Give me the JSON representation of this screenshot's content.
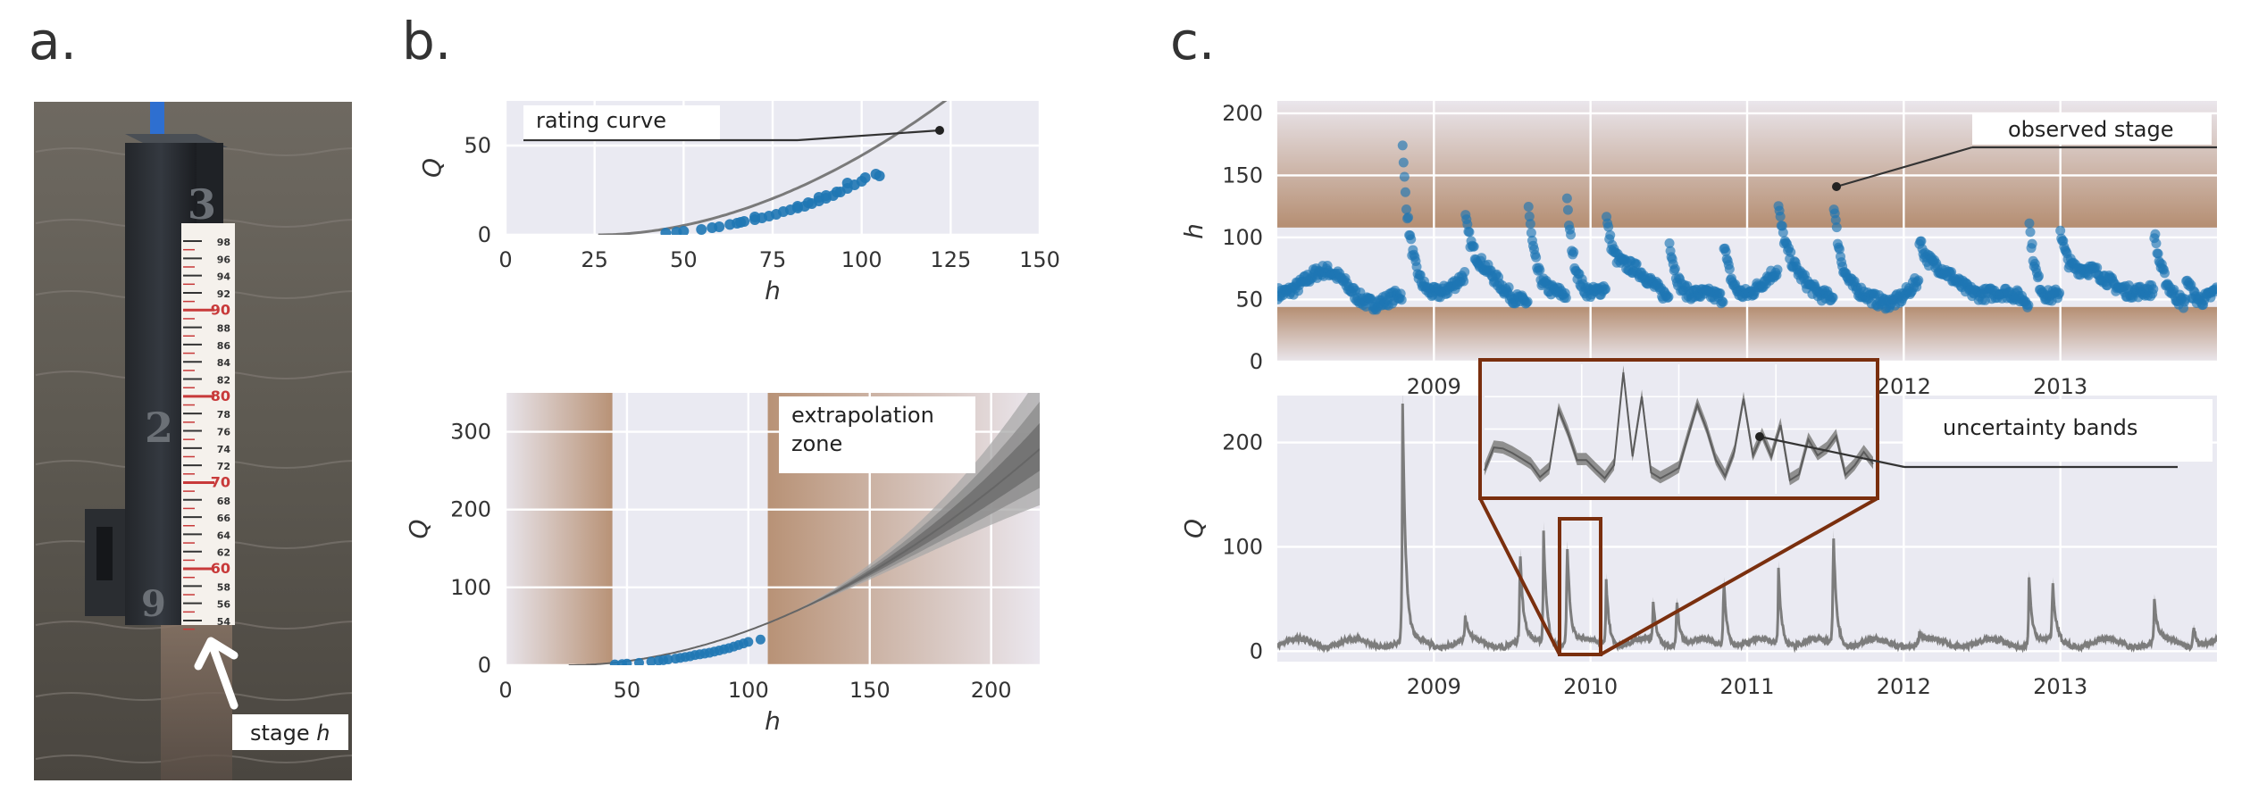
{
  "panels": {
    "a": {
      "letter": "a.",
      "label_prefix": "stage ",
      "label_var": "h",
      "gauge_marks": [
        "98",
        "96",
        "94",
        "92",
        "90",
        "88",
        "86",
        "84",
        "82",
        "80",
        "78",
        "76",
        "74",
        "72",
        "70",
        "68",
        "66",
        "64",
        "62",
        "60",
        "58",
        "56",
        "54"
      ],
      "post_numerals": [
        "3",
        "2",
        "9"
      ]
    },
    "b": {
      "letter": "b.",
      "callout_top": "rating curve",
      "callout_bottom_1": "extrapolation",
      "callout_bottom_2": "zone"
    },
    "c": {
      "letter": "c.",
      "callout_top": "observed stage",
      "callout_bottom": "uncertainty bands"
    }
  },
  "chart_data": [
    {
      "id": "b_top",
      "type": "scatter",
      "xlabel": "h",
      "ylabel": "Q",
      "xlim": [
        0,
        150
      ],
      "ylim": [
        0,
        75
      ],
      "xticks": [
        0,
        25,
        50,
        75,
        100,
        125,
        150
      ],
      "yticks": [
        0,
        50
      ],
      "curve": {
        "h0": 26,
        "a": 0.0125,
        "b": 1.9,
        "x_range": [
          26,
          135
        ]
      },
      "points": [
        [
          45,
          1
        ],
        [
          48,
          1.5
        ],
        [
          50,
          2
        ],
        [
          55,
          3
        ],
        [
          60,
          4.5
        ],
        [
          63,
          5.8
        ],
        [
          65,
          6.5
        ],
        [
          67,
          7.5
        ],
        [
          70,
          8.5
        ],
        [
          72,
          9.5
        ],
        [
          74,
          10.5
        ],
        [
          76,
          11.5
        ],
        [
          78,
          13
        ],
        [
          80,
          14
        ],
        [
          82,
          15
        ],
        [
          84,
          16
        ],
        [
          86,
          17.5
        ],
        [
          88,
          19
        ],
        [
          90,
          20.5
        ],
        [
          92,
          22
        ],
        [
          94,
          24
        ],
        [
          96,
          26
        ],
        [
          98,
          28
        ],
        [
          100,
          30
        ],
        [
          105,
          33
        ],
        [
          82,
          16
        ],
        [
          88,
          21
        ],
        [
          93,
          24
        ],
        [
          70,
          10
        ],
        [
          66,
          7
        ],
        [
          58,
          4
        ],
        [
          96,
          29
        ],
        [
          101,
          32
        ],
        [
          104,
          34
        ],
        [
          85,
          18
        ],
        [
          90,
          22
        ]
      ]
    },
    {
      "id": "b_bottom",
      "type": "line",
      "xlabel": "h",
      "ylabel": "Q",
      "xlim": [
        0,
        220
      ],
      "ylim": [
        0,
        350
      ],
      "xticks": [
        0,
        50,
        100,
        150,
        200
      ],
      "yticks": [
        0,
        100,
        200,
        300
      ],
      "shaded_regions": [
        [
          0,
          44
        ],
        [
          108,
          220
        ]
      ],
      "curve": {
        "h0": 26,
        "a": 0.0125,
        "b": 1.9,
        "x_range": [
          26,
          220
        ]
      },
      "points": [
        [
          45,
          1
        ],
        [
          48,
          1.5
        ],
        [
          50,
          2
        ],
        [
          55,
          3
        ],
        [
          60,
          4.5
        ],
        [
          63,
          5.8
        ],
        [
          65,
          6.5
        ],
        [
          67,
          7.5
        ],
        [
          70,
          8.5
        ],
        [
          72,
          9.5
        ],
        [
          74,
          10.5
        ],
        [
          76,
          11.5
        ],
        [
          78,
          13
        ],
        [
          80,
          14
        ],
        [
          82,
          15
        ],
        [
          84,
          16
        ],
        [
          86,
          17.5
        ],
        [
          88,
          19
        ],
        [
          90,
          20.5
        ],
        [
          92,
          22
        ],
        [
          94,
          24
        ],
        [
          96,
          26
        ],
        [
          98,
          28
        ],
        [
          100,
          30
        ],
        [
          105,
          33
        ]
      ]
    },
    {
      "id": "c_top",
      "type": "scatter",
      "ylabel": "h",
      "xlim": [
        2008.0,
        2014.0
      ],
      "ylim": [
        0,
        210
      ],
      "xticks": [
        2009,
        2010,
        2011,
        2012,
        2013
      ],
      "yticks": [
        0,
        50,
        100,
        150,
        200
      ],
      "shaded_regions": [
        [
          0,
          44
        ],
        [
          108,
          210
        ]
      ],
      "events": [
        [
          2008.8,
          188
        ],
        [
          2009.2,
          110
        ],
        [
          2009.6,
          150
        ],
        [
          2009.85,
          140
        ],
        [
          2010.1,
          120
        ],
        [
          2010.5,
          115
        ],
        [
          2010.85,
          110
        ],
        [
          2011.2,
          115
        ],
        [
          2011.55,
          148
        ],
        [
          2012.1,
          95
        ],
        [
          2012.8,
          130
        ],
        [
          2013.0,
          115
        ],
        [
          2013.6,
          110
        ],
        [
          2013.8,
          85
        ]
      ],
      "baseline": 58
    },
    {
      "id": "c_bottom",
      "type": "line",
      "ylabel": "Q",
      "xlim": [
        2008.0,
        2014.0
      ],
      "ylim": [
        -10,
        245
      ],
      "xticks": [
        2009,
        2010,
        2011,
        2012,
        2013
      ],
      "yticks": [
        0,
        100,
        200
      ],
      "events": [
        [
          2008.8,
          235
        ],
        [
          2009.2,
          30
        ],
        [
          2009.55,
          95
        ],
        [
          2009.7,
          115
        ],
        [
          2009.85,
          110
        ],
        [
          2010.1,
          70
        ],
        [
          2010.4,
          45
        ],
        [
          2010.55,
          55
        ],
        [
          2010.85,
          75
        ],
        [
          2011.2,
          80
        ],
        [
          2011.55,
          120
        ],
        [
          2012.1,
          20
        ],
        [
          2012.8,
          75
        ],
        [
          2012.95,
          65
        ],
        [
          2013.6,
          50
        ],
        [
          2013.85,
          30
        ]
      ],
      "baseline": 8,
      "zoom_box": [
        2009.8,
        2010.07,
        2,
        130
      ]
    }
  ]
}
